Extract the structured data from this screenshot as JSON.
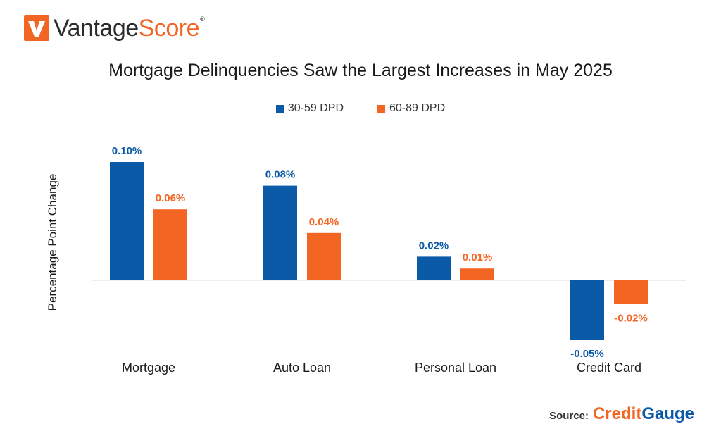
{
  "brand": {
    "name_part1": "Vantage",
    "name_part2": "Score",
    "trademark": "®"
  },
  "colors": {
    "series1": "#0a5aa8",
    "series2": "#f26522",
    "axis": "#d9d9d9"
  },
  "source": {
    "label": "Source:",
    "brand_part1": "Credit",
    "brand_part2": "Gauge"
  },
  "chart_data": {
    "type": "bar",
    "title": "Mortgage Delinquencies Saw the Largest Increases in May 2025",
    "xlabel": "",
    "ylabel": "Percentage Point Change",
    "categories": [
      "Mortgage",
      "Auto Loan",
      "Personal Loan",
      "Credit Card"
    ],
    "series": [
      {
        "name": "30-59 DPD",
        "values": [
          0.1,
          0.08,
          0.02,
          -0.05
        ],
        "labels": [
          "0.10%",
          "0.08%",
          "0.02%",
          "-0.05%"
        ]
      },
      {
        "name": "60-89 DPD",
        "values": [
          0.06,
          0.04,
          0.01,
          -0.02
        ],
        "labels": [
          "0.06%",
          "0.04%",
          "0.01%",
          "-0.02%"
        ]
      }
    ],
    "ylim": [
      -0.055,
      0.1
    ],
    "grid": false,
    "legend": "top-center"
  }
}
